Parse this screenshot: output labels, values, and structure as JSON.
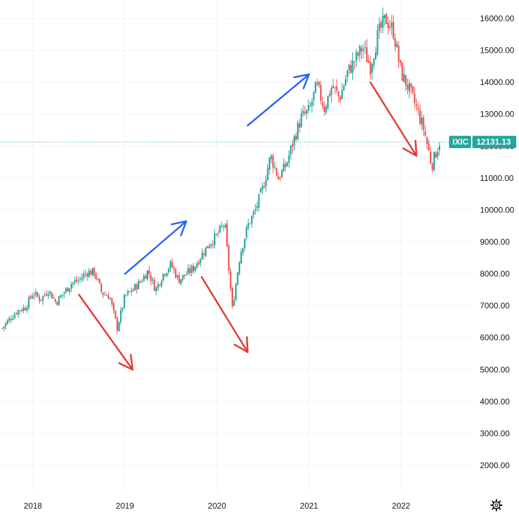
{
  "chart_data": {
    "type": "candlestick",
    "symbol": "IXIC",
    "last_value": "12131.13",
    "ylim": [
      1200,
      16500
    ],
    "y_ticks": [
      "16000.00",
      "15000.00",
      "14000.00",
      "13000.00",
      "12000.00",
      "11000.00",
      "10000.00",
      "9000.00",
      "8000.00",
      "7000.00",
      "6000.00",
      "5000.00",
      "4000.00",
      "3000.00",
      "2000.00"
    ],
    "x_ticks": [
      "2018",
      "2019",
      "2020",
      "2021",
      "2022"
    ],
    "grid": true,
    "colors": {
      "up": "#26a69a",
      "down": "#ef5350",
      "grid": "#f0f3fa",
      "price_line": "#26a69a",
      "arrow_up": "#2962ff",
      "arrow_down": "#e53935",
      "tag_bg": "#26a69a"
    },
    "price_path": [
      [
        "2017-09",
        6300
      ],
      [
        "2017-10",
        6600
      ],
      [
        "2017-11",
        6850
      ],
      [
        "2017-12",
        6950
      ],
      [
        "2018-01",
        7400
      ],
      [
        "2018-02",
        7200
      ],
      [
        "2018-03",
        7500
      ],
      [
        "2018-04",
        7100
      ],
      [
        "2018-05",
        7400
      ],
      [
        "2018-06",
        7700
      ],
      [
        "2018-07",
        7800
      ],
      [
        "2018-08",
        8050
      ],
      [
        "2018-09",
        8050
      ],
      [
        "2018-10",
        7400
      ],
      [
        "2018-11",
        7300
      ],
      [
        "2018-12",
        6300
      ],
      [
        "2019-01",
        7300
      ],
      [
        "2019-02",
        7500
      ],
      [
        "2019-03",
        7750
      ],
      [
        "2019-04",
        8100
      ],
      [
        "2019-05",
        7500
      ],
      [
        "2019-06",
        8000
      ],
      [
        "2019-07",
        8300
      ],
      [
        "2019-08",
        7800
      ],
      [
        "2019-09",
        8000
      ],
      [
        "2019-10",
        8200
      ],
      [
        "2019-11",
        8600
      ],
      [
        "2019-12",
        8950
      ],
      [
        "2020-01",
        9200
      ],
      [
        "2020-02",
        9600
      ],
      [
        "2020-03",
        6900
      ],
      [
        "2020-04",
        8600
      ],
      [
        "2020-05",
        9500
      ],
      [
        "2020-06",
        10000
      ],
      [
        "2020-07",
        10700
      ],
      [
        "2020-08",
        11700
      ],
      [
        "2020-09",
        11000
      ],
      [
        "2020-10",
        11400
      ],
      [
        "2020-11",
        12200
      ],
      [
        "2020-12",
        12900
      ],
      [
        "2021-01",
        13100
      ],
      [
        "2021-02",
        13900
      ],
      [
        "2021-03",
        13200
      ],
      [
        "2021-04",
        13900
      ],
      [
        "2021-05",
        13500
      ],
      [
        "2021-06",
        14300
      ],
      [
        "2021-07",
        14700
      ],
      [
        "2021-08",
        15100
      ],
      [
        "2021-09",
        14500
      ],
      [
        "2021-10",
        15500
      ],
      [
        "2021-11",
        16000
      ],
      [
        "2021-12",
        15600
      ],
      [
        "2022-01",
        14300
      ],
      [
        "2022-02",
        13800
      ],
      [
        "2022-03",
        13200
      ],
      [
        "2022-04",
        12500
      ],
      [
        "2022-05",
        11400
      ],
      [
        "2022-06",
        12131
      ]
    ],
    "annotations": [
      {
        "type": "arrow",
        "direction": "down",
        "from": [
          "2018-07",
          7350
        ],
        "to": [
          "2019-02",
          5000
        ]
      },
      {
        "type": "arrow",
        "direction": "up",
        "from": [
          "2019-01",
          8000
        ],
        "to": [
          "2019-09",
          9650
        ]
      },
      {
        "type": "arrow",
        "direction": "down",
        "from": [
          "2019-11",
          7900
        ],
        "to": [
          "2020-05",
          5550
        ]
      },
      {
        "type": "arrow",
        "direction": "up",
        "from": [
          "2020-05",
          12650
        ],
        "to": [
          "2021-01",
          14250
        ]
      },
      {
        "type": "arrow",
        "direction": "down",
        "from": [
          "2021-09",
          14000
        ],
        "to": [
          "2022-03",
          11700
        ]
      }
    ]
  },
  "toolbar": {
    "settings_icon": "gear-icon"
  }
}
